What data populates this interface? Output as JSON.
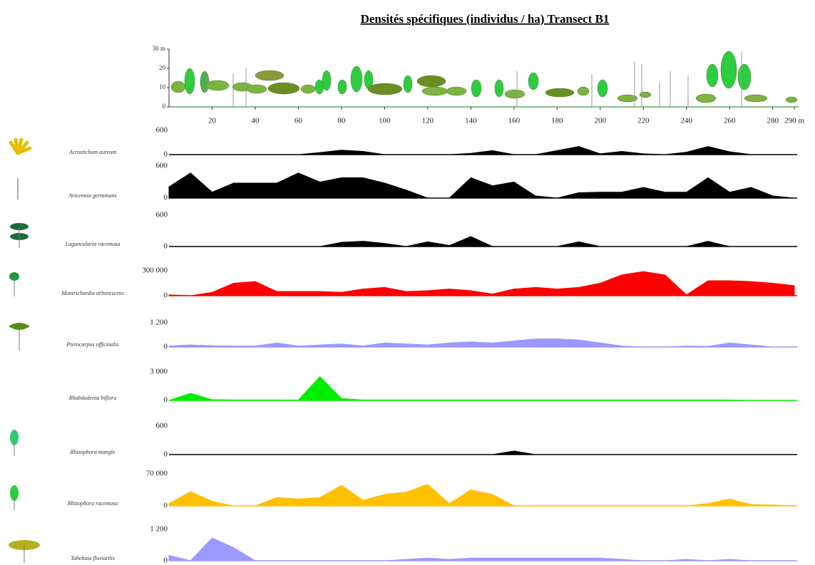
{
  "chart_data": {
    "type": "area",
    "title": "Densités spécifiques (individus / ha) Transect B1",
    "xlim": [
      0,
      290
    ],
    "xticks": [
      20,
      40,
      60,
      80,
      100,
      120,
      140,
      160,
      180,
      200,
      220,
      240,
      260,
      280,
      {
        "value": 290,
        "label": "290 m"
      }
    ],
    "profile_ylim": [
      0,
      30
    ],
    "profile_yticks": [
      0,
      10,
      20,
      {
        "value": 30,
        "label": "30 m"
      }
    ],
    "x": [
      0,
      10,
      20,
      30,
      40,
      50,
      60,
      70,
      80,
      90,
      100,
      110,
      120,
      130,
      140,
      150,
      160,
      170,
      180,
      190,
      200,
      210,
      220,
      230,
      240,
      250,
      260,
      270,
      280,
      290
    ],
    "series": [
      {
        "name": "Acrostichum aureum",
        "color": "#000000",
        "ylim": [
          0,
          600
        ],
        "yticks": [
          0,
          600
        ],
        "values": [
          0,
          0,
          0,
          0,
          0,
          0,
          0,
          50,
          110,
          80,
          0,
          0,
          0,
          0,
          30,
          100,
          0,
          0,
          100,
          200,
          20,
          80,
          20,
          0,
          60,
          200,
          70,
          0,
          0,
          0
        ]
      },
      {
        "name": "Avicennia germinans",
        "color": "#000000",
        "ylim": [
          0,
          600
        ],
        "yticks": [
          0,
          600
        ],
        "values": [
          210,
          470,
          110,
          280,
          280,
          280,
          470,
          300,
          380,
          380,
          280,
          150,
          0,
          0,
          380,
          230,
          300,
          40,
          0,
          100,
          110,
          110,
          200,
          110,
          110,
          380,
          110,
          200,
          40,
          0
        ]
      },
      {
        "name": "Laguncularia racemosa",
        "color": "#000000",
        "ylim": [
          0,
          600
        ],
        "yticks": [
          0,
          600
        ],
        "values": [
          0,
          0,
          0,
          0,
          0,
          0,
          0,
          0,
          80,
          100,
          60,
          0,
          90,
          20,
          190,
          0,
          0,
          0,
          0,
          90,
          0,
          0,
          0,
          0,
          0,
          100,
          0,
          0,
          0,
          0
        ]
      },
      {
        "name": "Montrichardia arborescens",
        "color": "#ff0000",
        "ylim": [
          0,
          300000
        ],
        "yticks": [
          0,
          {
            "value": 300000,
            "label": "300 000"
          }
        ],
        "values": [
          10000,
          0,
          40000,
          150000,
          170000,
          50000,
          50000,
          50000,
          40000,
          80000,
          100000,
          50000,
          60000,
          80000,
          60000,
          20000,
          80000,
          100000,
          80000,
          100000,
          150000,
          250000,
          290000,
          250000,
          10000,
          180000,
          180000,
          170000,
          150000,
          120000
        ]
      },
      {
        "name": "Pterocarpus officinalis",
        "color": "#9999ff",
        "ylim": [
          0,
          1200
        ],
        "yticks": [
          0,
          {
            "value": 1200,
            "label": "1 200"
          }
        ],
        "values": [
          50,
          100,
          60,
          50,
          50,
          200,
          50,
          100,
          150,
          50,
          200,
          150,
          100,
          200,
          250,
          200,
          300,
          400,
          400,
          350,
          200,
          50,
          0,
          0,
          50,
          30,
          200,
          100,
          0,
          0
        ]
      },
      {
        "name": "Rhabdadenia biflora",
        "color": "#00ee00",
        "ylim": [
          0,
          3000
        ],
        "yticks": [
          0,
          {
            "value": 3000,
            "label": "3 000"
          }
        ],
        "values": [
          0,
          750,
          80,
          50,
          50,
          50,
          50,
          2500,
          200,
          50,
          50,
          50,
          50,
          50,
          50,
          50,
          50,
          50,
          50,
          50,
          50,
          50,
          50,
          50,
          50,
          50,
          50,
          0,
          0,
          0
        ]
      },
      {
        "name": "Rhizophora mangle",
        "color": "#000000",
        "ylim": [
          0,
          600
        ],
        "yticks": [
          0,
          600
        ],
        "values": [
          0,
          0,
          0,
          0,
          0,
          0,
          0,
          0,
          0,
          0,
          0,
          0,
          0,
          0,
          0,
          0,
          75,
          0,
          0,
          0,
          0,
          0,
          0,
          0,
          0,
          0,
          0,
          0,
          0,
          0
        ]
      },
      {
        "name": "Rhizophora racemosa",
        "color": "#ffc000",
        "ylim": [
          0,
          70000
        ],
        "yticks": [
          0,
          {
            "value": 70000,
            "label": "70 000"
          }
        ],
        "values": [
          5000,
          31000,
          10000,
          0,
          0,
          18000,
          15000,
          18000,
          45000,
          12000,
          25000,
          30000,
          47000,
          5000,
          35000,
          25000,
          0,
          0,
          0,
          0,
          0,
          0,
          0,
          0,
          0,
          5000,
          15000,
          3000,
          2000,
          0
        ]
      },
      {
        "name": "Tabebuia fluviatilis",
        "color": "#9999ff",
        "ylim": [
          0,
          1200
        ],
        "yticks": [
          0,
          {
            "value": 1200,
            "label": "1 200"
          }
        ],
        "values": [
          200,
          0,
          870,
          500,
          0,
          0,
          0,
          0,
          0,
          0,
          0,
          50,
          100,
          50,
          100,
          100,
          100,
          100,
          100,
          100,
          100,
          50,
          0,
          0,
          50,
          0,
          50,
          0,
          0,
          0
        ]
      }
    ]
  }
}
